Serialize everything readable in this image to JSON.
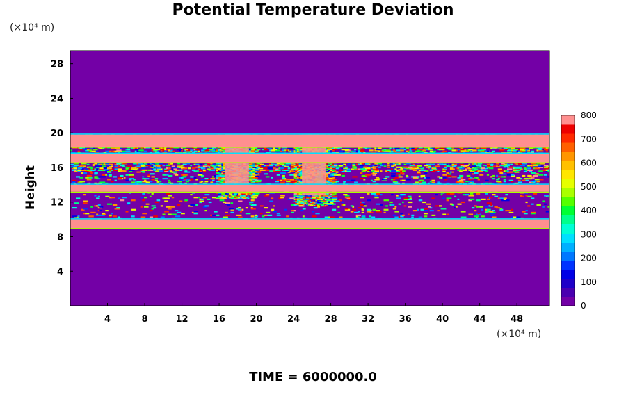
{
  "title": "Potential Temperature Deviation",
  "y_unit": "(×10⁴ m)",
  "x_unit": "(×10⁴ m)",
  "footer": "TIME = 6000000.0",
  "colors": {
    "background_field": "#7300a6",
    "colorbar": [
      "#7300a6",
      "#4a00b0",
      "#1f00c8",
      "#0000e6",
      "#0033ff",
      "#0077ff",
      "#00b0ff",
      "#00e0ff",
      "#00ffd5",
      "#00ff8c",
      "#00ff33",
      "#55ff00",
      "#aaff00",
      "#e6ff00",
      "#ffe600",
      "#ffc000",
      "#ff9600",
      "#ff6000",
      "#ff2a00",
      "#ee0000",
      "#ff8f8f"
    ]
  },
  "chart_data": {
    "type": "heatmap",
    "title": "Potential Temperature Deviation",
    "xlabel": "",
    "ylabel": "Height",
    "xlim": [
      0,
      51.5
    ],
    "ylim": [
      0,
      29.5
    ],
    "x_ticks": [
      4,
      8,
      12,
      16,
      20,
      24,
      28,
      32,
      36,
      40,
      44,
      48
    ],
    "y_ticks": [
      4,
      8,
      12,
      16,
      20,
      24,
      28
    ],
    "colorbar": {
      "min": 0,
      "max": 800,
      "ticks": [
        0,
        100,
        200,
        300,
        400,
        500,
        600,
        700,
        800
      ]
    },
    "grid": false,
    "solid_layers_y": [
      {
        "from": 9.0,
        "to": 10.0,
        "value": 800
      },
      {
        "from": 13.2,
        "to": 14.0,
        "value": 800
      },
      {
        "from": 16.6,
        "to": 17.6,
        "value": 800
      },
      {
        "from": 18.4,
        "to": 19.8,
        "value": 800
      }
    ],
    "turbulent_band_y": [
      10.0,
      19.8
    ],
    "plumes_x": [
      {
        "x": 17.9,
        "from_y": 12.4,
        "to_y": 19.8
      },
      {
        "x": 26.2,
        "from_y": 11.6,
        "to_y": 19.8
      }
    ]
  }
}
